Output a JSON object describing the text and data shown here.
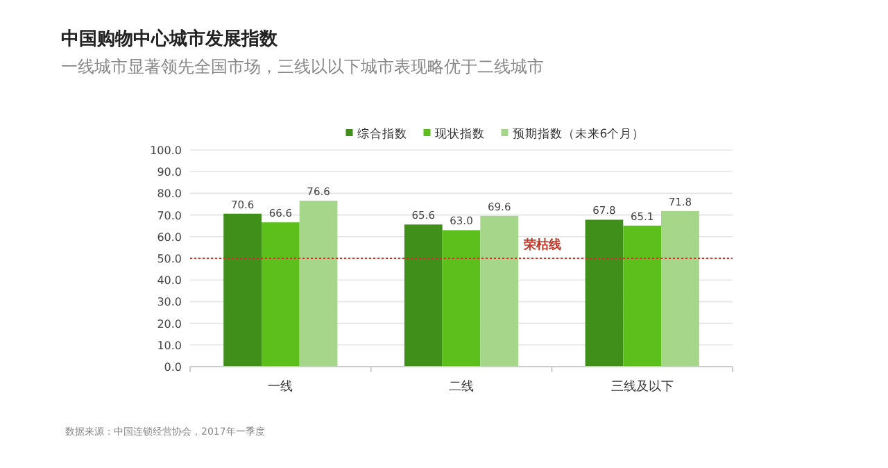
{
  "chart_data": {
    "type": "bar",
    "title": "中国购物中心城市发展指数",
    "subtitle": "一线城市显著领先全国市场，三线以以下城市表现略优于二线城市",
    "categories": [
      "一线",
      "二线",
      "三线及以下"
    ],
    "series": [
      {
        "name": "综合指数",
        "color": "#3f8f1a",
        "values": [
          70.6,
          65.6,
          67.8
        ],
        "value_labels": [
          "70.6",
          "65.6",
          "67.8"
        ]
      },
      {
        "name": "现状指数",
        "color": "#5cbf1c",
        "values": [
          66.6,
          63.0,
          65.1
        ],
        "value_labels": [
          "66.6",
          "63.0",
          "65.1"
        ]
      },
      {
        "name": "预期指数（未来6个月）",
        "color": "#a5d68a",
        "values": [
          76.6,
          69.6,
          71.8
        ],
        "value_labels": [
          "76.6",
          "69.6",
          "71.8"
        ]
      }
    ],
    "ylim": [
      0,
      100
    ],
    "yticks": [
      {
        "value": 0,
        "label": "0.0"
      },
      {
        "value": 10,
        "label": "10.0"
      },
      {
        "value": 20,
        "label": "20.0"
      },
      {
        "value": 30,
        "label": "30.0"
      },
      {
        "value": 40,
        "label": "40.0"
      },
      {
        "value": 50,
        "label": "50.0"
      },
      {
        "value": 60,
        "label": "60.0"
      },
      {
        "value": 70,
        "label": "70.0"
      },
      {
        "value": 80,
        "label": "80.0"
      },
      {
        "value": 90,
        "label": "90.0"
      },
      {
        "value": 100,
        "label": "100.0"
      }
    ],
    "ref_lines": [
      {
        "axis": "y",
        "value": 50,
        "label": "荣枯线",
        "color": "#c0392b",
        "line_style": "dotted"
      }
    ],
    "grid": "y",
    "legend": "top",
    "annotations": [
      "数据来源：中国连锁经营协会，2017年一季度"
    ]
  }
}
